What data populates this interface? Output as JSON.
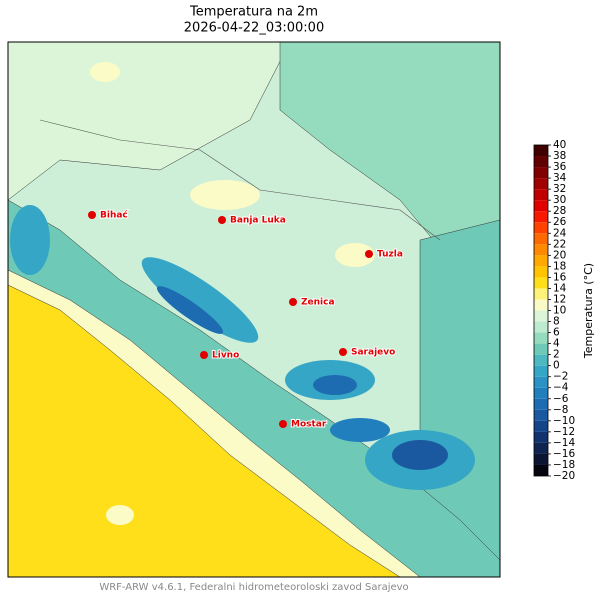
{
  "title": "Temperatura na 2m",
  "subtitle": "2026-04-22_03:00:00",
  "cities": [
    "Bihać",
    "Banja Luka",
    "Tuzla",
    "Zenica",
    "Livno",
    "Sarajevo",
    "Mostar"
  ],
  "colorbar": {
    "label": "Temperatura (°C)",
    "ticks": [
      {
        "value": -20,
        "label": "−20"
      },
      {
        "value": -18,
        "label": "−18"
      },
      {
        "value": -16,
        "label": "−16"
      },
      {
        "value": -14,
        "label": "−14"
      },
      {
        "value": -12,
        "label": "−12"
      },
      {
        "value": -10,
        "label": "−10"
      },
      {
        "value": -8,
        "label": "−8"
      },
      {
        "value": -6,
        "label": "−6"
      },
      {
        "value": -4,
        "label": "−4"
      },
      {
        "value": -2,
        "label": "−2"
      },
      0,
      2,
      4,
      6,
      8,
      10,
      12,
      14,
      16,
      18,
      20,
      22,
      24,
      26,
      28,
      30,
      32,
      34,
      36,
      38,
      40
    ],
    "colors": [
      "#050510",
      "#0b1430",
      "#102450",
      "#12336e",
      "#154589",
      "#1a58a0",
      "#1d6bb0",
      "#227fbd",
      "#2a92c4",
      "#36a6c6",
      "#4db8bf",
      "#6ec9b6",
      "#95dbbd",
      "#bdebcf",
      "#dcf5d8",
      "#fbfbc8",
      "#fff27a",
      "#ffde1a",
      "#ffc400",
      "#ffa800",
      "#ff8a00",
      "#ff6a00",
      "#ff4200",
      "#f81a00",
      "#e00000",
      "#c00000",
      "#a00000",
      "#800000",
      "#600000",
      "#400000"
    ]
  },
  "footer": "WRF-ARW v4.6.1, Federalni hidrometeoroloski zavod Sarajevo"
}
